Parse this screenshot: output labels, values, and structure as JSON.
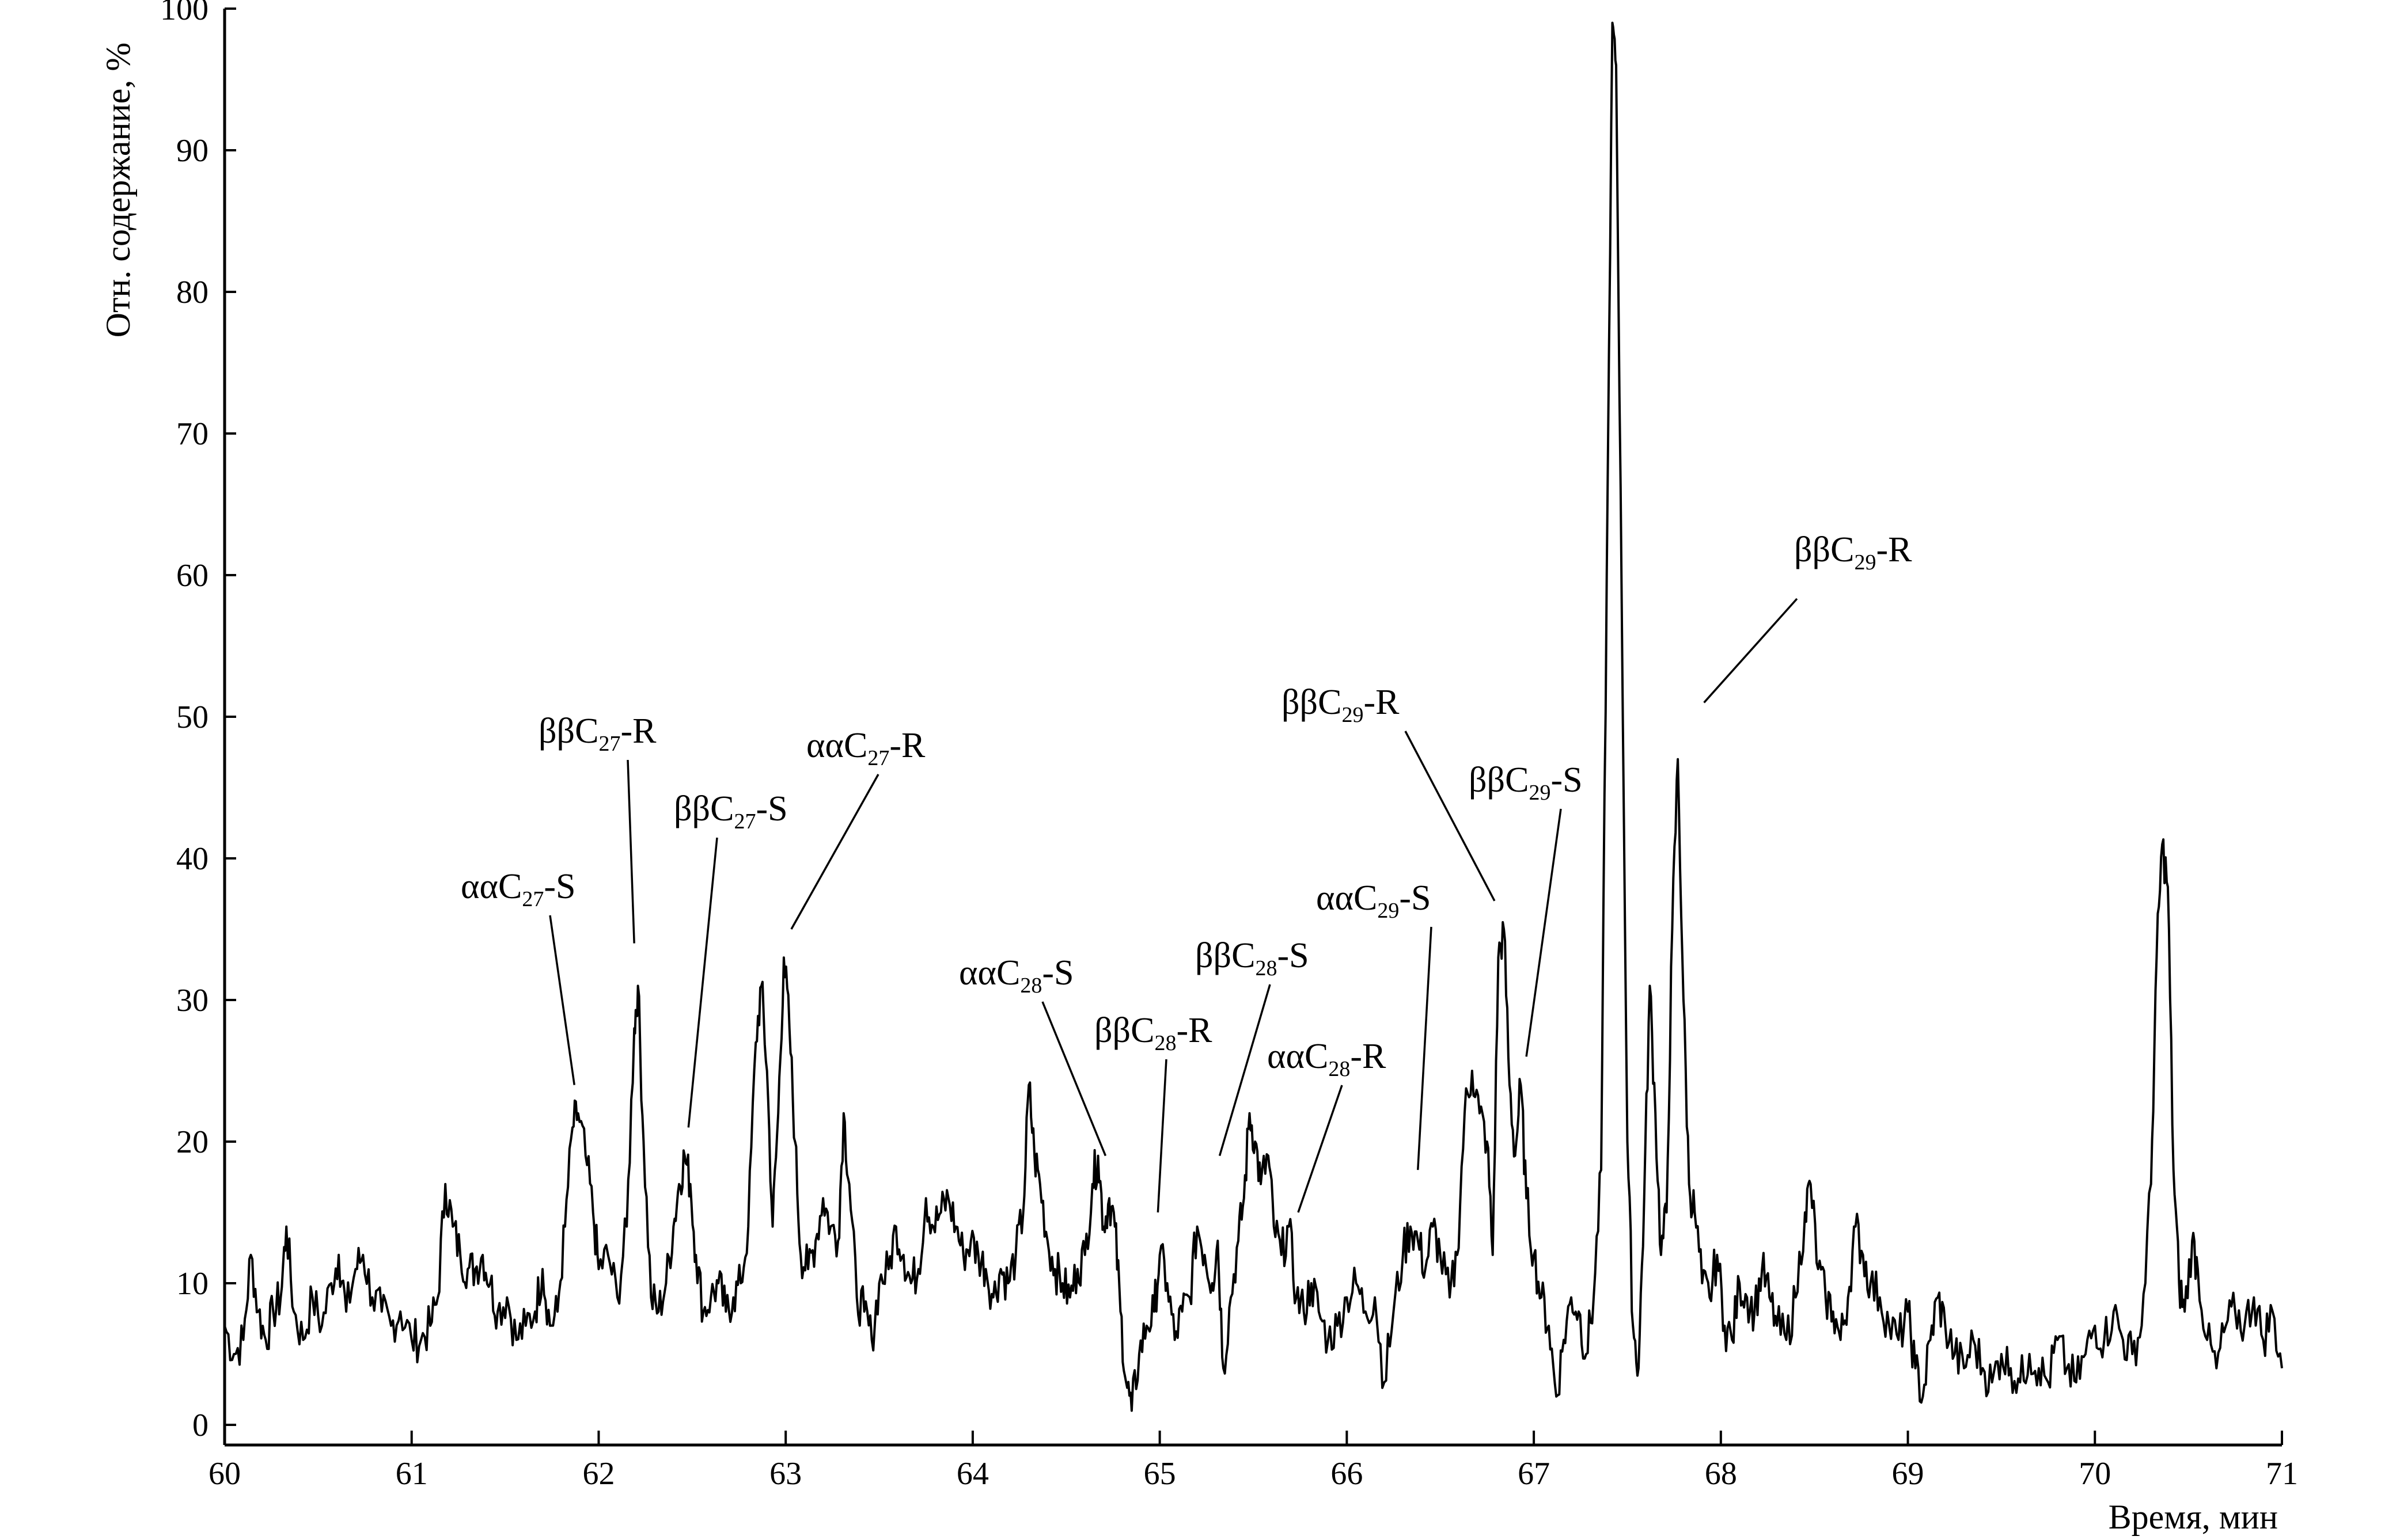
{
  "chart_data": {
    "type": "line",
    "title": "",
    "xlabel": "Время, мин",
    "ylabel": "Отн. содержание, %",
    "xlim": [
      60,
      71
    ],
    "ylim": [
      0,
      100
    ],
    "x_ticks": [
      "60",
      "61",
      "62",
      "63",
      "64",
      "65",
      "66",
      "67",
      "68",
      "69",
      "70",
      "71"
    ],
    "y_ticks": [
      "0",
      "10",
      "20",
      "30",
      "40",
      "50",
      "60",
      "70",
      "80",
      "90",
      "100"
    ],
    "grid": false,
    "legend": "none",
    "series": [
      {
        "points": [
          [
            60.0,
            7
          ],
          [
            60.05,
            5
          ],
          [
            60.1,
            6
          ],
          [
            60.14,
            12
          ],
          [
            60.18,
            8
          ],
          [
            60.22,
            6
          ],
          [
            60.26,
            8
          ],
          [
            60.3,
            9
          ],
          [
            60.33,
            14
          ],
          [
            60.37,
            8
          ],
          [
            60.42,
            6
          ],
          [
            60.47,
            9
          ],
          [
            60.52,
            7
          ],
          [
            60.57,
            10
          ],
          [
            60.61,
            12
          ],
          [
            60.65,
            8
          ],
          [
            60.7,
            11
          ],
          [
            60.74,
            12
          ],
          [
            60.79,
            9
          ],
          [
            60.84,
            8
          ],
          [
            60.89,
            7
          ],
          [
            60.94,
            8
          ],
          [
            61.0,
            6
          ],
          [
            61.05,
            6
          ],
          [
            61.1,
            7
          ],
          [
            61.14,
            9
          ],
          [
            61.18,
            17
          ],
          [
            61.22,
            14
          ],
          [
            61.26,
            12
          ],
          [
            61.3,
            11
          ],
          [
            61.34,
            11
          ],
          [
            61.38,
            12
          ],
          [
            61.42,
            10
          ],
          [
            61.46,
            8
          ],
          [
            61.51,
            9
          ],
          [
            61.56,
            6
          ],
          [
            61.61,
            7
          ],
          [
            61.66,
            8
          ],
          [
            61.7,
            11
          ],
          [
            61.74,
            7
          ],
          [
            61.78,
            8
          ],
          [
            61.82,
            14
          ],
          [
            61.86,
            21
          ],
          [
            61.89,
            22
          ],
          [
            61.93,
            19
          ],
          [
            61.97,
            15
          ],
          [
            62.0,
            11
          ],
          [
            62.05,
            12
          ],
          [
            62.1,
            9
          ],
          [
            62.15,
            14
          ],
          [
            62.19,
            28
          ],
          [
            62.21,
            31
          ],
          [
            62.24,
            20
          ],
          [
            62.28,
            9
          ],
          [
            62.32,
            8
          ],
          [
            62.36,
            10
          ],
          [
            62.4,
            14
          ],
          [
            62.43,
            17
          ],
          [
            62.46,
            19
          ],
          [
            62.49,
            17
          ],
          [
            62.52,
            12
          ],
          [
            62.56,
            8
          ],
          [
            62.6,
            9
          ],
          [
            62.64,
            10
          ],
          [
            62.68,
            8
          ],
          [
            62.72,
            9
          ],
          [
            62.76,
            10
          ],
          [
            62.8,
            14
          ],
          [
            62.84,
            27
          ],
          [
            62.87,
            31
          ],
          [
            62.9,
            25
          ],
          [
            62.93,
            14
          ],
          [
            62.96,
            22
          ],
          [
            62.99,
            33
          ],
          [
            63.02,
            28
          ],
          [
            63.05,
            20
          ],
          [
            63.08,
            12
          ],
          [
            63.12,
            11
          ],
          [
            63.16,
            13
          ],
          [
            63.2,
            16
          ],
          [
            63.24,
            14
          ],
          [
            63.28,
            13
          ],
          [
            63.31,
            22
          ],
          [
            63.34,
            17
          ],
          [
            63.38,
            9
          ],
          [
            63.42,
            8
          ],
          [
            63.46,
            6
          ],
          [
            63.5,
            10
          ],
          [
            63.55,
            11
          ],
          [
            63.59,
            14
          ],
          [
            63.63,
            12
          ],
          [
            63.67,
            10
          ],
          [
            63.71,
            11
          ],
          [
            63.75,
            16
          ],
          [
            63.79,
            14
          ],
          [
            63.83,
            15
          ],
          [
            63.87,
            16
          ],
          [
            63.91,
            14
          ],
          [
            63.95,
            12
          ],
          [
            63.99,
            13
          ],
          [
            64.03,
            12
          ],
          [
            64.07,
            11
          ],
          [
            64.11,
            9
          ],
          [
            64.15,
            11
          ],
          [
            64.19,
            10
          ],
          [
            64.23,
            12
          ],
          [
            64.27,
            15
          ],
          [
            64.3,
            24
          ],
          [
            64.33,
            19
          ],
          [
            64.36,
            17
          ],
          [
            64.4,
            13
          ],
          [
            64.44,
            11
          ],
          [
            64.48,
            10
          ],
          [
            64.52,
            9
          ],
          [
            64.56,
            11
          ],
          [
            64.6,
            12
          ],
          [
            64.64,
            17
          ],
          [
            64.67,
            19
          ],
          [
            64.7,
            14
          ],
          [
            64.73,
            16
          ],
          [
            64.76,
            14
          ],
          [
            64.79,
            8
          ],
          [
            64.82,
            3
          ],
          [
            64.85,
            1
          ],
          [
            64.89,
            5
          ],
          [
            64.93,
            7
          ],
          [
            64.97,
            8
          ],
          [
            65.0,
            12
          ],
          [
            65.04,
            10
          ],
          [
            65.08,
            6
          ],
          [
            65.12,
            8
          ],
          [
            65.16,
            9
          ],
          [
            65.2,
            14
          ],
          [
            65.24,
            12
          ],
          [
            65.28,
            10
          ],
          [
            65.31,
            13
          ],
          [
            65.34,
            4
          ],
          [
            65.38,
            9
          ],
          [
            65.42,
            13
          ],
          [
            65.45,
            16
          ],
          [
            65.48,
            22
          ],
          [
            65.51,
            20
          ],
          [
            65.54,
            17
          ],
          [
            65.58,
            19
          ],
          [
            65.61,
            14
          ],
          [
            65.65,
            12
          ],
          [
            65.69,
            14
          ],
          [
            65.73,
            9
          ],
          [
            65.77,
            8
          ],
          [
            65.81,
            10
          ],
          [
            65.85,
            8
          ],
          [
            65.9,
            6
          ],
          [
            65.95,
            7
          ],
          [
            66.0,
            9
          ],
          [
            66.05,
            10
          ],
          [
            66.1,
            8
          ],
          [
            66.15,
            9
          ],
          [
            66.2,
            3
          ],
          [
            66.25,
            8
          ],
          [
            66.3,
            12
          ],
          [
            66.34,
            14
          ],
          [
            66.38,
            13
          ],
          [
            66.42,
            11
          ],
          [
            66.46,
            14
          ],
          [
            66.5,
            12
          ],
          [
            66.55,
            9
          ],
          [
            66.59,
            12
          ],
          [
            66.63,
            22
          ],
          [
            66.67,
            25
          ],
          [
            66.71,
            22
          ],
          [
            66.75,
            20
          ],
          [
            66.78,
            12
          ],
          [
            66.81,
            33
          ],
          [
            66.84,
            35
          ],
          [
            66.87,
            24
          ],
          [
            66.9,
            19
          ],
          [
            66.93,
            24
          ],
          [
            66.96,
            16
          ],
          [
            67.0,
            12
          ],
          [
            67.04,
            9
          ],
          [
            67.08,
            7
          ],
          [
            67.12,
            2
          ],
          [
            67.16,
            6
          ],
          [
            67.2,
            9
          ],
          [
            67.24,
            8
          ],
          [
            67.28,
            5
          ],
          [
            67.32,
            9
          ],
          [
            67.36,
            18
          ],
          [
            67.39,
            60
          ],
          [
            67.42,
            99
          ],
          [
            67.44,
            96
          ],
          [
            67.47,
            58
          ],
          [
            67.5,
            20
          ],
          [
            67.53,
            7
          ],
          [
            67.56,
            4
          ],
          [
            67.59,
            16
          ],
          [
            67.62,
            31
          ],
          [
            67.65,
            22
          ],
          [
            67.68,
            12
          ],
          [
            67.71,
            15
          ],
          [
            67.74,
            35
          ],
          [
            67.77,
            47
          ],
          [
            67.8,
            30
          ],
          [
            67.83,
            17
          ],
          [
            67.86,
            15
          ],
          [
            67.9,
            10
          ],
          [
            67.94,
            9
          ],
          [
            67.98,
            12
          ],
          [
            68.02,
            7
          ],
          [
            68.06,
            6
          ],
          [
            68.1,
            10
          ],
          [
            68.14,
            9
          ],
          [
            68.18,
            8
          ],
          [
            68.22,
            11
          ],
          [
            68.26,
            9
          ],
          [
            68.3,
            7
          ],
          [
            68.35,
            6
          ],
          [
            68.4,
            9
          ],
          [
            68.45,
            15
          ],
          [
            68.48,
            17
          ],
          [
            68.52,
            11
          ],
          [
            68.56,
            9
          ],
          [
            68.6,
            8
          ],
          [
            68.64,
            6
          ],
          [
            68.68,
            9
          ],
          [
            68.72,
            14
          ],
          [
            68.76,
            12
          ],
          [
            68.8,
            10
          ],
          [
            68.85,
            9
          ],
          [
            68.9,
            7
          ],
          [
            68.95,
            6
          ],
          [
            69.0,
            8
          ],
          [
            69.04,
            4
          ],
          [
            69.08,
            2
          ],
          [
            69.12,
            6
          ],
          [
            69.16,
            9
          ],
          [
            69.2,
            7
          ],
          [
            69.25,
            5
          ],
          [
            69.3,
            4
          ],
          [
            69.35,
            6
          ],
          [
            69.4,
            4
          ],
          [
            69.45,
            3
          ],
          [
            69.5,
            5
          ],
          [
            69.55,
            4
          ],
          [
            69.6,
            3
          ],
          [
            69.65,
            5
          ],
          [
            69.7,
            4
          ],
          [
            69.75,
            3
          ],
          [
            69.8,
            6
          ],
          [
            69.85,
            4
          ],
          [
            69.9,
            3
          ],
          [
            69.95,
            5
          ],
          [
            70.0,
            7
          ],
          [
            70.05,
            6
          ],
          [
            70.1,
            8
          ],
          [
            70.15,
            6
          ],
          [
            70.2,
            5
          ],
          [
            70.25,
            7
          ],
          [
            70.3,
            17
          ],
          [
            70.33,
            33
          ],
          [
            70.36,
            41
          ],
          [
            70.39,
            38
          ],
          [
            70.42,
            18
          ],
          [
            70.45,
            10
          ],
          [
            70.48,
            8
          ],
          [
            70.52,
            13
          ],
          [
            70.55,
            11
          ],
          [
            70.6,
            6
          ],
          [
            70.65,
            4
          ],
          [
            70.7,
            7
          ],
          [
            70.75,
            8
          ],
          [
            70.8,
            7
          ],
          [
            70.85,
            9
          ],
          [
            70.9,
            6
          ],
          [
            70.95,
            8
          ],
          [
            71.0,
            4
          ]
        ]
      }
    ],
    "annotations": [
      {
        "label": "ααC",
        "sub": "27",
        "suffix": "-S",
        "x": 61.87,
        "y": 24
      },
      {
        "label": "ββC",
        "sub": "27",
        "suffix": "-R",
        "x": 62.19,
        "y": 34
      },
      {
        "label": "ββC",
        "sub": "27",
        "suffix": "-S",
        "x": 62.48,
        "y": 21
      },
      {
        "label": "ααC",
        "sub": "27",
        "suffix": "-R",
        "x": 63.03,
        "y": 35
      },
      {
        "label": "ααC",
        "sub": "28",
        "suffix": "-S",
        "x": 64.71,
        "y": 19
      },
      {
        "label": "ββC",
        "sub": "28",
        "suffix": "-R",
        "x": 64.99,
        "y": 15
      },
      {
        "label": "ββC",
        "sub": "28",
        "suffix": "-S",
        "x": 65.32,
        "y": 19
      },
      {
        "label": "ααC",
        "sub": "28",
        "suffix": "-R",
        "x": 65.74,
        "y": 15
      },
      {
        "label": "ααC",
        "sub": "29",
        "suffix": "-S",
        "x": 66.38,
        "y": 18
      },
      {
        "label": "ββC",
        "sub": "29",
        "suffix": "-R",
        "x": 66.79,
        "y": 37
      },
      {
        "label": "ββC",
        "sub": "29",
        "suffix": "-S",
        "x": 66.96,
        "y": 26
      },
      {
        "label": "ββC",
        "sub": "29",
        "suffix": "-R",
        "x": 67.91,
        "y": 51
      }
    ]
  }
}
